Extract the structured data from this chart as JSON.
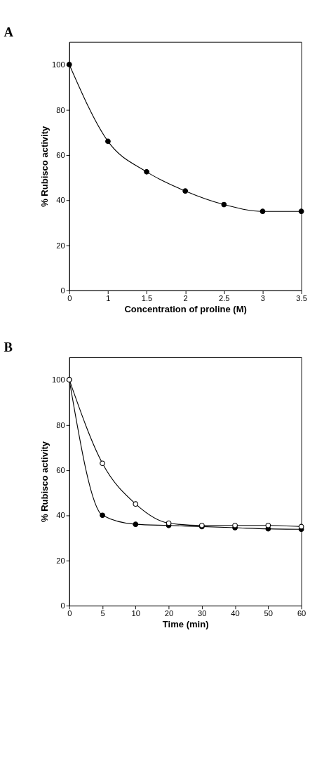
{
  "chart_data": [
    {
      "type": "line",
      "title": "A",
      "xlabel": "Concentration of proline (M)",
      "ylabel": "% Rubisco activity",
      "categories": [
        "0",
        "1",
        "1.5",
        "2",
        "2.5",
        "3",
        "3.5"
      ],
      "series": [
        {
          "color": "#000000",
          "values": [
            100,
            66,
            52.5,
            44,
            38,
            35,
            35
          ]
        }
      ],
      "ylim": [
        0,
        110
      ],
      "yticks": [
        0,
        20,
        40,
        60,
        80,
        100
      ],
      "grid": false,
      "marker": "circle",
      "line_style": "solid"
    },
    {
      "type": "line",
      "title": "B",
      "xlabel": "Time (min)",
      "ylabel": "% Rubisco activity",
      "categories": [
        "0",
        "5",
        "10",
        "20",
        "30",
        "40",
        "50",
        "60"
      ],
      "series": [
        {
          "color": "#000000",
          "values": [
            100,
            40,
            36,
            35.5,
            35,
            34.5,
            34,
            33.8
          ]
        },
        {
          "color": "#000000",
          "values": [
            100,
            63,
            45,
            36.5,
            35.5,
            35.5,
            35.5,
            35
          ]
        }
      ],
      "ylim": [
        0,
        110
      ],
      "yticks": [
        0,
        20,
        40,
        60,
        80,
        100
      ],
      "grid": false,
      "marker": "circle",
      "line_style": "solid"
    }
  ]
}
